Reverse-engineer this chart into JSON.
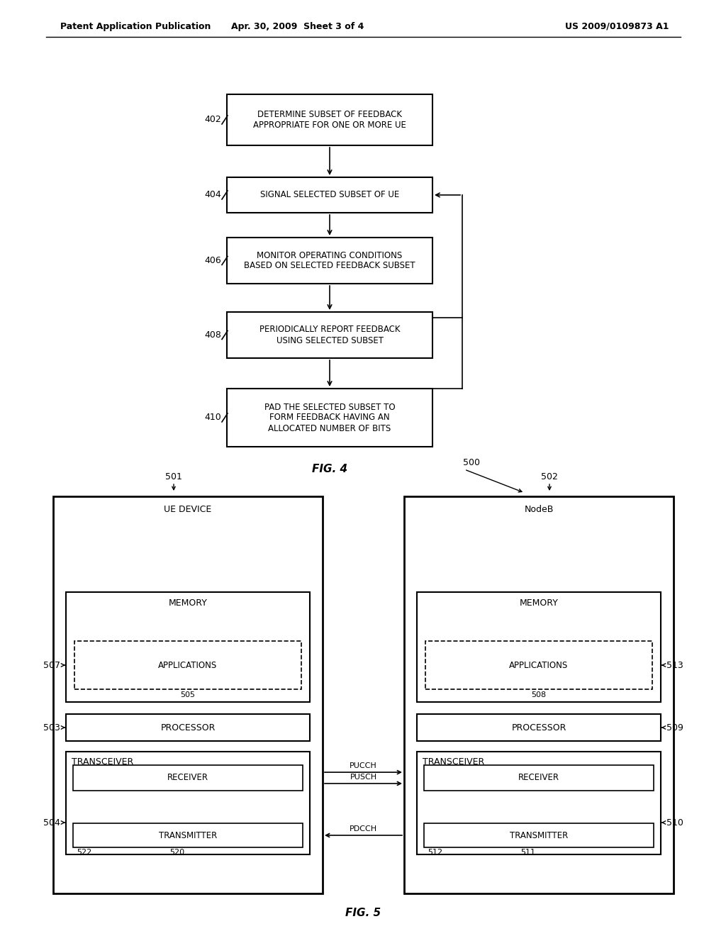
{
  "bg_color": "#ffffff",
  "header_left": "Patent Application Publication",
  "header_mid": "Apr. 30, 2009  Sheet 3 of 4",
  "header_right": "US 2009/0109873 A1",
  "fig4_caption": "FIG. 4",
  "fig5_caption": "FIG. 5",
  "box402_text": "DETERMINE SUBSET OF FEEDBACK\nAPPROPRIATE FOR ONE OR MORE UE",
  "box404_text": "SIGNAL SELECTED SUBSET OF UE",
  "box406_text": "MONITOR OPERATING CONDITIONS\nBASED ON SELECTED FEEDBACK SUBSET",
  "box408_text": "PERIODICALLY REPORT FEEDBACK\nUSING SELECTED SUBSET",
  "box410_text": "PAD THE SELECTED SUBSET TO\nFORM FEEDBACK HAVING AN\nALLOCATED NUMBER OF BITS",
  "ue_title": "UE DEVICE",
  "nb_title": "NodeB",
  "memory_label": "MEMORY",
  "applications_label": "APPLICATIONS",
  "processor_label": "PROCESSOR",
  "transceiver_label": "TRANSCEIVER",
  "receiver_label": "RECEIVER",
  "transmitter_label": "TRANSMITTER",
  "pucch": "PUCCH",
  "pusch": "PUSCH",
  "pdcch": "PDCCH",
  "label_402": "402",
  "label_404": "404",
  "label_406": "406",
  "label_408": "408",
  "label_410": "410",
  "label_500": "500",
  "label_501": "501",
  "label_502": "502",
  "label_503": "503",
  "label_504": "504",
  "label_505": "505",
  "label_507": "507",
  "label_508": "508",
  "label_509": "509",
  "label_510": "510",
  "label_511": "511",
  "label_512": "512",
  "label_513": "513",
  "label_520": "520",
  "label_522": "522"
}
